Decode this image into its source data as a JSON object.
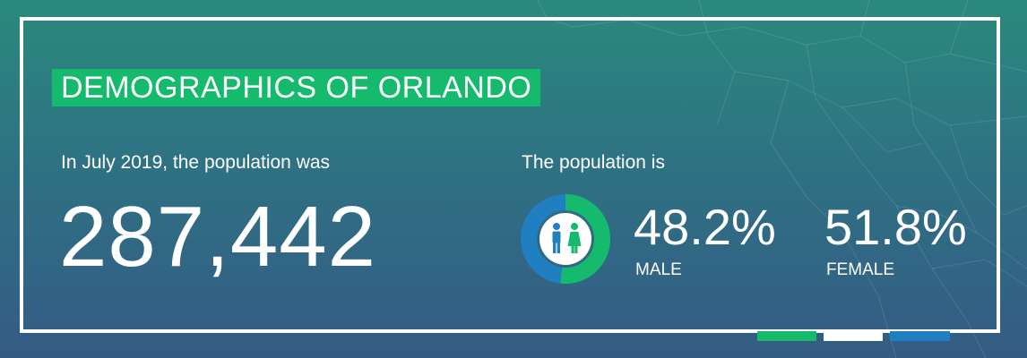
{
  "title": "DEMOGRAPHICS OF ORLANDO",
  "intro_text": "In July 2019, the population was",
  "population": "287,442",
  "population_label": "The population is",
  "male": {
    "value": "48.2%",
    "label": "MALE",
    "fraction": 0.482
  },
  "female": {
    "value": "51.8%",
    "label": "FEMALE",
    "fraction": 0.518
  },
  "colors": {
    "accent_green": "#16ba6d",
    "accent_blue": "#1f7fc1",
    "white": "#ffffff"
  },
  "icons": [
    "people-restroom-icon"
  ]
}
